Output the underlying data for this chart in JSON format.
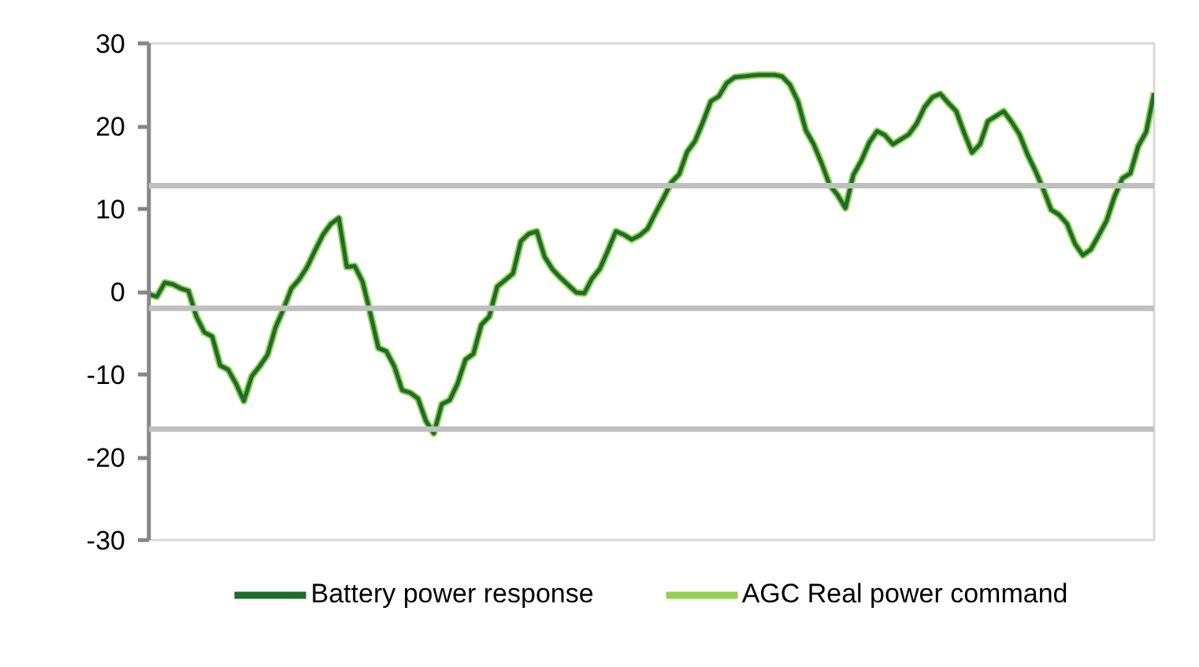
{
  "chart_data": {
    "type": "line",
    "categories": [
      null,
      null,
      null,
      null,
      null,
      null,
      null,
      null,
      null,
      null,
      null,
      null,
      null,
      null,
      null,
      null,
      null,
      null,
      null,
      null,
      null,
      null,
      null,
      null,
      null,
      null,
      null,
      null,
      null,
      null,
      null,
      null,
      null,
      null,
      null,
      null,
      null,
      null,
      null,
      null,
      null,
      null,
      null,
      null,
      null,
      null,
      null,
      null,
      null,
      null,
      null,
      null,
      null,
      null,
      null,
      null,
      null,
      null,
      null,
      null,
      null,
      null,
      null,
      null,
      null,
      null,
      null,
      null,
      null,
      null,
      null,
      null,
      null,
      null,
      null,
      null,
      null,
      null,
      null,
      null,
      null,
      null,
      null,
      null,
      null,
      null,
      null,
      null,
      null,
      null,
      null,
      null,
      null,
      null,
      null,
      null,
      null,
      null,
      null,
      null,
      null,
      null,
      null,
      null,
      null,
      null,
      null,
      null,
      null,
      null,
      null,
      null,
      null,
      null,
      null,
      null,
      null,
      null,
      null,
      null,
      null,
      null,
      null,
      null,
      null,
      null,
      null,
      null
    ],
    "series": [
      {
        "name": "Battery power response",
        "color": "#1f6b2b",
        "values": [
          -0.3,
          -0.6,
          1.1,
          0.9,
          0.4,
          0.1,
          -3.0,
          -4.9,
          -5.4,
          -8.9,
          -9.4,
          -11.1,
          -13.2,
          -10.2,
          -9.0,
          -7.6,
          -4.3,
          -2.1,
          0.4,
          1.5,
          3.0,
          5.0,
          6.9,
          8.2,
          8.9,
          3.0,
          3.1,
          1.2,
          -2.7,
          -6.8,
          -7.2,
          -9.0,
          -11.9,
          -12.2,
          -12.9,
          -15.6,
          -17.1,
          -13.6,
          -13.1,
          -11.1,
          -8.2,
          -7.5,
          -4.0,
          -3.0,
          0.6,
          1.4,
          2.2,
          6.1,
          7.0,
          7.3,
          4.2,
          2.7,
          1.7,
          0.8,
          -0.1,
          -0.2,
          1.6,
          2.8,
          5.0,
          7.3,
          6.9,
          6.3,
          6.8,
          7.6,
          9.5,
          11.3,
          13.2,
          14.2,
          16.9,
          18.2,
          20.5,
          23.0,
          23.6,
          25.2,
          25.9,
          26.0,
          26.1,
          26.2,
          26.2,
          26.2,
          26.0,
          25.0,
          23.0,
          19.5,
          17.8,
          15.5,
          12.9,
          11.7,
          10.1,
          14.1,
          15.8,
          18.0,
          19.4,
          18.9,
          17.8,
          18.4,
          19.0,
          20.3,
          22.3,
          23.5,
          23.9,
          22.8,
          21.8,
          19.2,
          16.8,
          17.8,
          20.6,
          21.2,
          21.8,
          20.5,
          19.0,
          16.6,
          14.6,
          12.4,
          9.9,
          9.3,
          8.2,
          5.8,
          4.4,
          5.1,
          6.8,
          8.6,
          11.5,
          13.7,
          14.3,
          17.6,
          19.3,
          24.0
        ]
      },
      {
        "name": "AGC Real power command",
        "color": "#92d050",
        "values": [
          -0.3,
          -0.6,
          1.1,
          0.9,
          0.4,
          0.1,
          -3.0,
          -4.9,
          -5.4,
          -8.9,
          -9.4,
          -11.1,
          -13.2,
          -10.2,
          -9.0,
          -7.6,
          -4.3,
          -2.1,
          0.4,
          1.5,
          3.0,
          5.0,
          6.9,
          8.2,
          8.9,
          3.0,
          3.1,
          1.2,
          -2.7,
          -6.8,
          -7.2,
          -9.0,
          -11.9,
          -12.2,
          -12.9,
          -15.6,
          -17.1,
          -13.6,
          -13.1,
          -11.1,
          -8.2,
          -7.5,
          -4.0,
          -3.0,
          0.6,
          1.4,
          2.2,
          6.1,
          7.0,
          7.3,
          4.2,
          2.7,
          1.7,
          0.8,
          -0.1,
          -0.2,
          1.6,
          2.8,
          5.0,
          7.3,
          6.9,
          6.3,
          6.8,
          7.6,
          9.5,
          11.3,
          13.2,
          14.2,
          16.9,
          18.2,
          20.5,
          23.0,
          23.6,
          25.2,
          25.9,
          26.0,
          26.1,
          26.2,
          26.2,
          26.2,
          26.0,
          25.0,
          23.0,
          19.5,
          17.8,
          15.5,
          12.9,
          11.7,
          10.1,
          14.1,
          15.8,
          18.0,
          19.4,
          18.9,
          17.8,
          18.4,
          19.0,
          20.3,
          22.3,
          23.5,
          23.9,
          22.8,
          21.8,
          19.2,
          16.8,
          17.8,
          20.6,
          21.2,
          21.8,
          20.5,
          19.0,
          16.6,
          14.6,
          12.4,
          9.9,
          9.3,
          8.2,
          5.8,
          4.4,
          5.1,
          6.8,
          8.6,
          11.5,
          13.7,
          14.3,
          17.6,
          19.3,
          24.0
        ]
      }
    ],
    "ylim": [
      -30,
      30
    ],
    "yticks": [
      -30,
      -20,
      -10,
      0,
      10,
      20,
      30
    ],
    "tick_labels": "y",
    "legend": "bottom",
    "ref_lines": [
      {
        "axis": "y",
        "value": 12.8,
        "color": "#bfbfbf"
      },
      {
        "axis": "y",
        "value": -2.0,
        "color": "#bfbfbf"
      },
      {
        "axis": "y",
        "value": -16.6,
        "color": "#bfbfbf"
      }
    ]
  }
}
